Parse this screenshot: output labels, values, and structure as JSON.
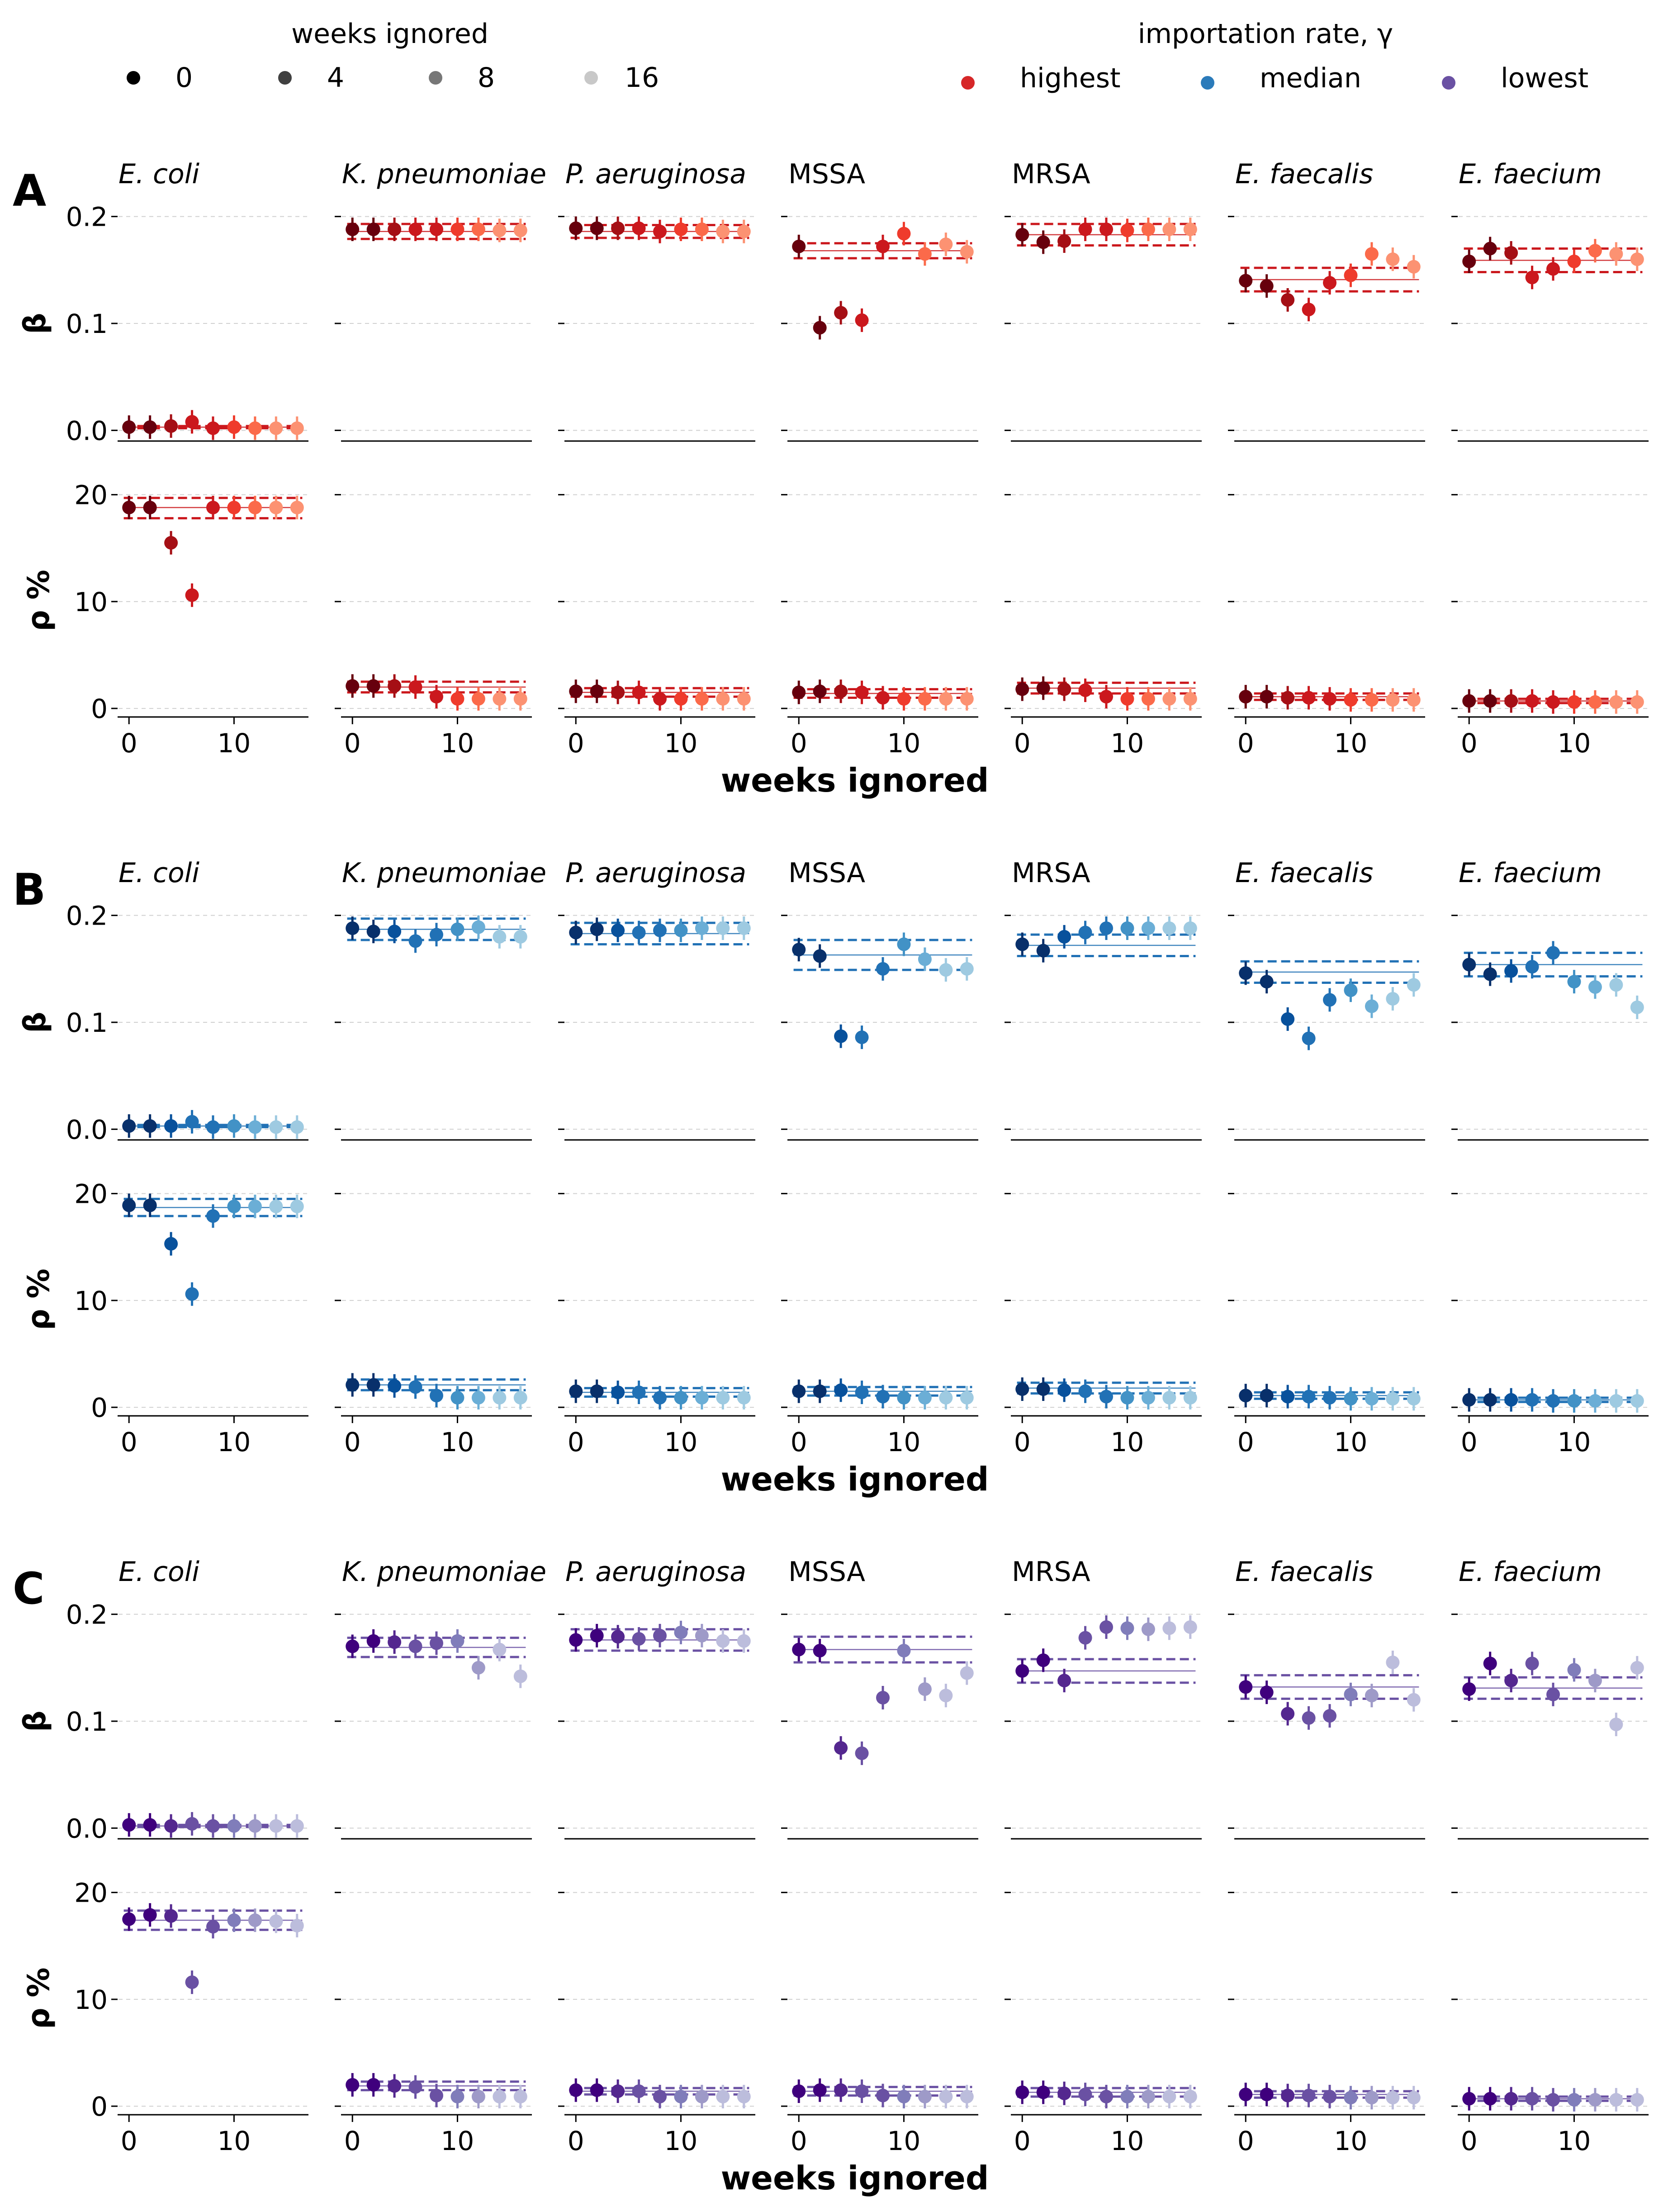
{
  "legend": {
    "weeks": {
      "title": "weeks ignored",
      "items": [
        {
          "label": "0",
          "color": "#000000"
        },
        {
          "label": "4",
          "color": "#404040"
        },
        {
          "label": "8",
          "color": "#777777"
        },
        {
          "label": "16",
          "color": "#c8c8c8"
        }
      ]
    },
    "importation": {
      "title": "importation rate, γ",
      "items": [
        {
          "label": "highest",
          "color": "#d62728"
        },
        {
          "label": "median",
          "color": "#2b7bba"
        },
        {
          "label": "lowest",
          "color": "#6a51a3"
        }
      ]
    }
  },
  "chart_data": {
    "type": "scatter",
    "x_label": "weeks ignored",
    "x_ticks": [
      0,
      10
    ],
    "x_range": [
      -1,
      17
    ],
    "x": [
      0,
      2,
      4,
      6,
      8,
      10,
      12,
      14,
      16
    ],
    "beta_axis": {
      "label": "β",
      "range": [
        -0.01,
        0.21
      ],
      "ticks": [
        "0.0",
        "0.1",
        "0.2"
      ],
      "tick_values": [
        0,
        0.1,
        0.2
      ]
    },
    "rho_axis": {
      "label": "ρ %",
      "range": [
        -0.8,
        21
      ],
      "ticks": [
        "0",
        "10",
        "20"
      ],
      "tick_values": [
        0,
        10,
        20
      ]
    },
    "grid": "horizontal dashed",
    "organisms": [
      {
        "name": "E. coli",
        "italic": true
      },
      {
        "name": "K. pneumoniae",
        "italic": true
      },
      {
        "name": "P. aeruginosa",
        "italic": true
      },
      {
        "name": "MSSA",
        "italic": false
      },
      {
        "name": "MRSA",
        "italic": false
      },
      {
        "name": "E. faecalis",
        "italic": true
      },
      {
        "name": "E. faecium",
        "italic": true
      }
    ],
    "panels": [
      {
        "label": "A",
        "importation": "highest",
        "palette": [
          "#67000d",
          "#a50f15",
          "#cb181d",
          "#ef3b2c",
          "#fb6a4a",
          "#fc9272"
        ],
        "beta": [
          {
            "values": [
              0.003,
              0.003,
              0.004,
              0.008,
              0.002,
              0.003,
              0.002,
              0.002,
              0.002
            ],
            "band": [
              0.002,
              0.003,
              0.004
            ]
          },
          {
            "values": [
              0.188,
              0.188,
              0.188,
              0.188,
              0.188,
              0.188,
              0.188,
              0.187,
              0.187
            ],
            "band": [
              0.179,
              0.186,
              0.193
            ]
          },
          {
            "values": [
              0.189,
              0.189,
              0.189,
              0.189,
              0.186,
              0.188,
              0.188,
              0.186,
              0.186
            ],
            "band": [
              0.18,
              0.186,
              0.192
            ]
          },
          {
            "values": [
              0.172,
              0.096,
              0.11,
              0.103,
              0.172,
              0.184,
              0.165,
              0.174,
              0.167
            ],
            "band": [
              0.161,
              0.168,
              0.175
            ]
          },
          {
            "values": [
              0.183,
              0.176,
              0.177,
              0.188,
              0.188,
              0.187,
              0.188,
              0.188,
              0.188
            ],
            "band": [
              0.173,
              0.183,
              0.193
            ]
          },
          {
            "values": [
              0.14,
              0.135,
              0.122,
              0.113,
              0.138,
              0.145,
              0.165,
              0.16,
              0.153
            ],
            "band": [
              0.13,
              0.141,
              0.152
            ]
          },
          {
            "values": [
              0.158,
              0.17,
              0.166,
              0.143,
              0.151,
              0.158,
              0.168,
              0.165,
              0.16
            ],
            "band": [
              0.148,
              0.159,
              0.17
            ]
          }
        ],
        "rho": [
          {
            "values": [
              18.8,
              18.8,
              15.5,
              10.6,
              18.8,
              18.8,
              18.8,
              18.8,
              18.8
            ],
            "band": [
              17.8,
              18.8,
              19.7
            ]
          },
          {
            "values": [
              2.1,
              2.1,
              2.1,
              2.0,
              1.1,
              0.9,
              0.9,
              0.9,
              0.9
            ],
            "band": [
              1.5,
              2.0,
              2.5
            ]
          },
          {
            "values": [
              1.6,
              1.6,
              1.5,
              1.5,
              0.9,
              0.9,
              0.9,
              0.9,
              0.9
            ],
            "band": [
              1.1,
              1.5,
              1.9
            ]
          },
          {
            "values": [
              1.5,
              1.6,
              1.6,
              1.5,
              1.0,
              0.9,
              0.9,
              0.9,
              0.9
            ],
            "band": [
              1.0,
              1.4,
              1.8
            ]
          },
          {
            "values": [
              1.8,
              1.9,
              1.8,
              1.7,
              1.1,
              0.9,
              0.9,
              0.9,
              0.9
            ],
            "band": [
              1.4,
              1.9,
              2.4
            ]
          },
          {
            "values": [
              1.1,
              1.1,
              1.0,
              1.0,
              0.9,
              0.8,
              0.8,
              0.8,
              0.8
            ],
            "band": [
              0.8,
              1.1,
              1.4
            ]
          },
          {
            "values": [
              0.7,
              0.7,
              0.7,
              0.7,
              0.6,
              0.6,
              0.6,
              0.6,
              0.6
            ],
            "band": [
              0.5,
              0.7,
              0.9
            ]
          }
        ]
      },
      {
        "label": "B",
        "importation": "median",
        "palette": [
          "#08306b",
          "#08519c",
          "#2171b5",
          "#4292c6",
          "#6baed6",
          "#9ecae1"
        ],
        "beta": [
          {
            "values": [
              0.003,
              0.003,
              0.003,
              0.007,
              0.002,
              0.003,
              0.002,
              0.002,
              0.002
            ],
            "band": [
              0.002,
              0.003,
              0.004
            ]
          },
          {
            "values": [
              0.188,
              0.185,
              0.185,
              0.176,
              0.182,
              0.187,
              0.189,
              0.18,
              0.18
            ],
            "band": [
              0.177,
              0.187,
              0.197
            ]
          },
          {
            "values": [
              0.184,
              0.187,
              0.186,
              0.184,
              0.186,
              0.186,
              0.188,
              0.188,
              0.188
            ],
            "band": [
              0.173,
              0.183,
              0.193
            ]
          },
          {
            "values": [
              0.168,
              0.162,
              0.087,
              0.086,
              0.15,
              0.173,
              0.159,
              0.149,
              0.15
            ],
            "band": [
              0.149,
              0.163,
              0.177
            ]
          },
          {
            "values": [
              0.173,
              0.167,
              0.18,
              0.184,
              0.188,
              0.188,
              0.188,
              0.188,
              0.188
            ],
            "band": [
              0.162,
              0.172,
              0.182
            ]
          },
          {
            "values": [
              0.146,
              0.138,
              0.103,
              0.085,
              0.121,
              0.13,
              0.115,
              0.122,
              0.135
            ],
            "band": [
              0.137,
              0.147,
              0.157
            ]
          },
          {
            "values": [
              0.154,
              0.145,
              0.148,
              0.152,
              0.165,
              0.138,
              0.133,
              0.135,
              0.114
            ],
            "band": [
              0.143,
              0.154,
              0.165
            ]
          }
        ],
        "rho": [
          {
            "values": [
              18.9,
              18.9,
              15.3,
              10.6,
              17.9,
              18.8,
              18.8,
              18.8,
              18.8
            ],
            "band": [
              17.9,
              18.7,
              19.5
            ]
          },
          {
            "values": [
              2.1,
              2.1,
              2.0,
              1.9,
              1.1,
              0.9,
              0.9,
              0.9,
              0.9
            ],
            "band": [
              1.6,
              2.1,
              2.6
            ]
          },
          {
            "values": [
              1.5,
              1.5,
              1.4,
              1.4,
              0.9,
              0.9,
              0.9,
              0.9,
              0.9
            ],
            "band": [
              1.0,
              1.4,
              1.8
            ]
          },
          {
            "values": [
              1.5,
              1.5,
              1.6,
              1.4,
              1.0,
              0.9,
              0.9,
              0.9,
              0.9
            ],
            "band": [
              1.1,
              1.5,
              1.9
            ]
          },
          {
            "values": [
              1.7,
              1.7,
              1.6,
              1.5,
              1.0,
              0.9,
              0.9,
              0.9,
              0.9
            ],
            "band": [
              1.3,
              1.8,
              2.3
            ]
          },
          {
            "values": [
              1.1,
              1.1,
              1.0,
              1.0,
              0.9,
              0.8,
              0.8,
              0.8,
              0.8
            ],
            "band": [
              0.8,
              1.1,
              1.4
            ]
          },
          {
            "values": [
              0.7,
              0.7,
              0.7,
              0.7,
              0.6,
              0.6,
              0.6,
              0.6,
              0.6
            ],
            "band": [
              0.5,
              0.7,
              0.9
            ]
          }
        ]
      },
      {
        "label": "C",
        "importation": "lowest",
        "palette": [
          "#3f007d",
          "#54278f",
          "#6a51a3",
          "#807dba",
          "#9e9ac8",
          "#bcbddc"
        ],
        "beta": [
          {
            "values": [
              0.003,
              0.003,
              0.002,
              0.004,
              0.002,
              0.002,
              0.002,
              0.002,
              0.002
            ],
            "band": [
              0.001,
              0.002,
              0.003
            ]
          },
          {
            "values": [
              0.17,
              0.175,
              0.174,
              0.17,
              0.173,
              0.175,
              0.15,
              0.167,
              0.142
            ],
            "band": [
              0.16,
              0.169,
              0.178
            ]
          },
          {
            "values": [
              0.176,
              0.18,
              0.179,
              0.177,
              0.18,
              0.183,
              0.18,
              0.175,
              0.175
            ],
            "band": [
              0.166,
              0.176,
              0.186
            ]
          },
          {
            "values": [
              0.167,
              0.166,
              0.075,
              0.07,
              0.122,
              0.166,
              0.13,
              0.124,
              0.145
            ],
            "band": [
              0.155,
              0.167,
              0.179
            ]
          },
          {
            "values": [
              0.147,
              0.157,
              0.138,
              0.178,
              0.188,
              0.187,
              0.186,
              0.187,
              0.188
            ],
            "band": [
              0.136,
              0.147,
              0.158
            ]
          },
          {
            "values": [
              0.132,
              0.127,
              0.107,
              0.103,
              0.105,
              0.125,
              0.124,
              0.155,
              0.12
            ],
            "band": [
              0.121,
              0.132,
              0.143
            ]
          },
          {
            "values": [
              0.13,
              0.154,
              0.138,
              0.154,
              0.125,
              0.148,
              0.138,
              0.097,
              0.15
            ],
            "band": [
              0.121,
              0.131,
              0.141
            ]
          }
        ],
        "rho": [
          {
            "values": [
              17.5,
              17.9,
              17.8,
              11.6,
              16.8,
              17.4,
              17.4,
              17.3,
              16.9
            ],
            "band": [
              16.5,
              17.4,
              18.3
            ]
          },
          {
            "values": [
              2.0,
              2.0,
              1.9,
              1.8,
              1.0,
              0.9,
              0.9,
              0.9,
              0.9
            ],
            "band": [
              1.5,
              1.9,
              2.3
            ]
          },
          {
            "values": [
              1.5,
              1.5,
              1.4,
              1.4,
              0.9,
              0.9,
              0.9,
              0.9,
              0.9
            ],
            "band": [
              1.1,
              1.4,
              1.7
            ]
          },
          {
            "values": [
              1.4,
              1.5,
              1.5,
              1.4,
              1.0,
              0.9,
              0.9,
              0.9,
              0.9
            ],
            "band": [
              1.0,
              1.4,
              1.8
            ]
          },
          {
            "values": [
              1.3,
              1.3,
              1.2,
              1.1,
              0.9,
              0.9,
              0.9,
              0.9,
              0.9
            ],
            "band": [
              0.9,
              1.3,
              1.7
            ]
          },
          {
            "values": [
              1.1,
              1.1,
              1.0,
              1.0,
              0.9,
              0.8,
              0.8,
              0.8,
              0.8
            ],
            "band": [
              0.8,
              1.1,
              1.4
            ]
          },
          {
            "values": [
              0.7,
              0.7,
              0.7,
              0.7,
              0.6,
              0.6,
              0.6,
              0.6,
              0.6
            ],
            "band": [
              0.5,
              0.7,
              0.9
            ]
          }
        ]
      }
    ]
  }
}
